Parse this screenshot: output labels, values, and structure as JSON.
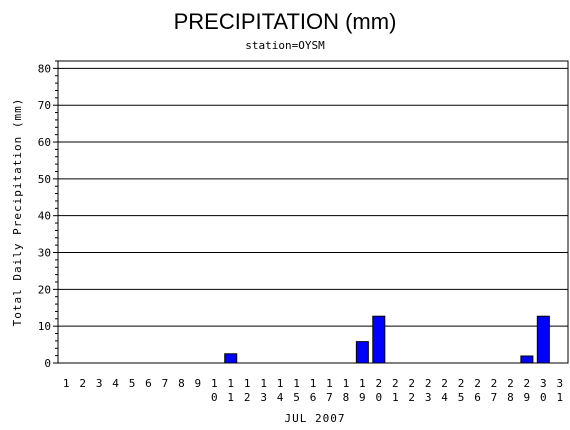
{
  "chart_data": {
    "type": "bar",
    "title": "PRECIPITATION (mm)",
    "subtitle": "station=OYSM",
    "xlabel": "JUL 2007",
    "ylabel": "Total Daily Precipitation (mm)",
    "categories": [
      "1",
      "2",
      "3",
      "4",
      "5",
      "6",
      "7",
      "8",
      "9",
      "10",
      "11",
      "12",
      "13",
      "14",
      "15",
      "16",
      "17",
      "18",
      "19",
      "20",
      "21",
      "22",
      "23",
      "24",
      "25",
      "26",
      "27",
      "28",
      "29",
      "30",
      "31"
    ],
    "values": [
      0,
      0,
      0,
      0,
      0,
      0,
      0,
      0,
      0,
      0,
      2.5,
      0,
      0,
      0,
      0,
      0,
      0,
      0,
      5.8,
      12.7,
      0,
      0,
      0,
      0,
      0,
      0,
      0,
      0,
      1.9,
      12.7,
      0
    ],
    "ylim": [
      0,
      82
    ],
    "yticks": [
      0,
      10,
      20,
      30,
      40,
      50,
      60,
      70,
      80
    ],
    "grid": true,
    "bar_color": "#0000ff"
  }
}
